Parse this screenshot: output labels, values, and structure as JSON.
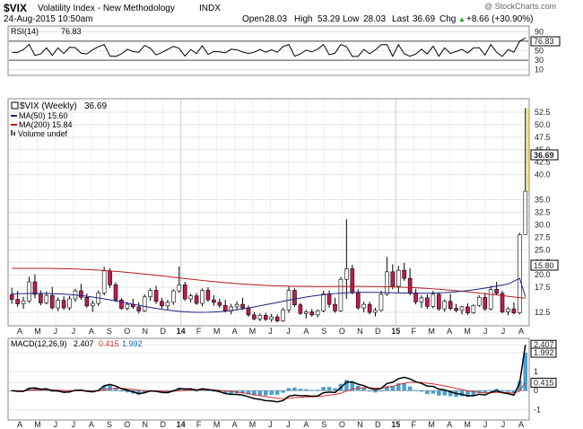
{
  "header": {
    "symbol": "$VIX",
    "name": "Volatility Index - New Methodology",
    "exchange": "INDX",
    "date": "24-Aug-2015 10:50am",
    "copyright": "@ StockCharts.com",
    "open_label": "Open",
    "open": "28.03",
    "high_label": "High",
    "high": "53.29",
    "low_label": "Low",
    "low": "28.03",
    "last_label": "Last",
    "last": "36.69",
    "chg_label": "Chg",
    "chg": "+8.66 (+30.90%)",
    "chg_arrow": "▲"
  },
  "rsi_panel": {
    "label": "RSI(14)",
    "value": "76.83",
    "ticks": [
      "90",
      "70",
      "50",
      "30",
      "10"
    ],
    "overbought": 70,
    "oversold": 30
  },
  "price_panel": {
    "label": "$VIX (Weekly)",
    "value": "36.69",
    "legend": [
      {
        "text": "MA(50) 15.60",
        "color": "#1a237e"
      },
      {
        "text": "MA(200) 15.84",
        "color": "#b71c1c"
      },
      {
        "text": "Volume undef",
        "color": "#555555"
      }
    ],
    "ticks": [
      "52.5",
      "50.0",
      "47.5",
      "45.0",
      "42.5",
      "40.0",
      "36.69",
      "35.0",
      "32.5",
      "30.0",
      "27.5",
      "25.0",
      "22.5",
      "20.0",
      "17.5",
      "15.80",
      "12.5"
    ],
    "last_tag": "36.69",
    "ma_tag": "15.80"
  },
  "macd_panel": {
    "label": "MACD(12,26,9)",
    "v1": "2.407",
    "v2": "0.415",
    "v3": "1.992",
    "ticks": [
      "2.407",
      "1.992",
      "1",
      "0.415",
      "0",
      "-1"
    ]
  },
  "x_axis": {
    "labels": [
      "A",
      "M",
      "J",
      "J",
      "A",
      "S",
      "O",
      "N",
      "D",
      "14",
      "F",
      "M",
      "A",
      "M",
      "J",
      "J",
      "A",
      "S",
      "O",
      "N",
      "D",
      "15",
      "F",
      "M",
      "A",
      "M",
      "J",
      "J",
      "A"
    ]
  },
  "colors": {
    "up_candle": "#ffffff",
    "down_candle": "#c2185b",
    "ma50": "#1a237e",
    "ma200": "#b71c1c",
    "macd_line": "#000000",
    "signal_line": "#d32f2f",
    "histogram": "#4a9fcf",
    "spike": "#ffeb3b",
    "panel_border": "#888888"
  },
  "chart_data": [
    {
      "type": "line",
      "name": "RSI(14)",
      "ylim": [
        0,
        100
      ],
      "ticks": [
        10,
        30,
        50,
        70,
        90
      ],
      "last": 76.83
    },
    {
      "type": "candlestick",
      "title": "$VIX (Weekly)",
      "ylim": [
        10,
        55
      ],
      "ohlc": [
        [
          16.0,
          17.4,
          14.2,
          15.1
        ],
        [
          15.1,
          16.8,
          13.6,
          14.2
        ],
        [
          14.2,
          15.6,
          13.2,
          14.8
        ],
        [
          14.8,
          19.6,
          14.4,
          18.6
        ],
        [
          18.6,
          20.1,
          15.3,
          16.1
        ],
        [
          16.1,
          16.9,
          13.9,
          14.4
        ],
        [
          14.4,
          16.7,
          14.1,
          15.9
        ],
        [
          15.9,
          17.6,
          13.1,
          13.4
        ],
        [
          13.4,
          15.5,
          12.7,
          14.9
        ],
        [
          14.9,
          15.7,
          13.0,
          13.4
        ],
        [
          13.4,
          15.8,
          12.9,
          15.2
        ],
        [
          15.2,
          17.2,
          14.6,
          16.8
        ],
        [
          16.8,
          18.2,
          15.0,
          15.5
        ],
        [
          15.5,
          16.3,
          13.4,
          13.8
        ],
        [
          13.8,
          14.9,
          12.6,
          14.3
        ],
        [
          14.3,
          16.9,
          13.8,
          16.4
        ],
        [
          16.4,
          21.6,
          15.9,
          20.8
        ],
        [
          20.8,
          21.3,
          17.4,
          18.0
        ],
        [
          18.0,
          18.5,
          14.6,
          15.0
        ],
        [
          15.0,
          15.3,
          13.0,
          13.3
        ],
        [
          13.3,
          14.6,
          12.9,
          14.1
        ],
        [
          14.1,
          15.2,
          13.2,
          13.6
        ],
        [
          13.6,
          14.5,
          12.3,
          12.8
        ],
        [
          12.8,
          16.1,
          12.6,
          15.6
        ],
        [
          15.6,
          17.3,
          14.8,
          16.9
        ],
        [
          16.9,
          17.8,
          14.2,
          14.7
        ],
        [
          14.7,
          15.4,
          13.3,
          13.8
        ],
        [
          13.8,
          15.0,
          13.0,
          14.5
        ],
        [
          14.5,
          17.1,
          14.0,
          16.8
        ],
        [
          16.8,
          21.7,
          16.4,
          18.0
        ],
        [
          18.0,
          18.6,
          14.8,
          15.2
        ],
        [
          15.2,
          16.2,
          14.5,
          15.8
        ],
        [
          15.8,
          16.4,
          14.0,
          14.3
        ],
        [
          14.3,
          17.3,
          13.7,
          16.9
        ],
        [
          16.9,
          17.5,
          14.6,
          15.0
        ],
        [
          15.0,
          15.9,
          13.8,
          14.5
        ],
        [
          14.5,
          15.2,
          13.4,
          13.9
        ],
        [
          13.9,
          15.0,
          12.5,
          12.8
        ],
        [
          12.8,
          14.2,
          12.1,
          13.6
        ],
        [
          13.6,
          14.7,
          13.0,
          14.1
        ],
        [
          14.1,
          15.4,
          13.0,
          13.4
        ],
        [
          13.4,
          13.9,
          11.6,
          12.0
        ],
        [
          12.0,
          12.6,
          10.9,
          11.2
        ],
        [
          11.2,
          12.3,
          10.7,
          11.9
        ],
        [
          11.9,
          12.4,
          10.8,
          11.1
        ],
        [
          11.1,
          12.2,
          10.6,
          11.6
        ],
        [
          11.6,
          12.1,
          10.5,
          10.8
        ],
        [
          10.8,
          13.4,
          10.6,
          13.0
        ],
        [
          13.0,
          17.6,
          12.4,
          16.9
        ],
        [
          16.9,
          17.3,
          13.6,
          14.0
        ],
        [
          14.0,
          14.4,
          12.0,
          12.3
        ],
        [
          12.3,
          13.0,
          11.3,
          12.6
        ],
        [
          12.6,
          13.2,
          11.6,
          12.0
        ],
        [
          12.0,
          13.1,
          11.5,
          12.8
        ],
        [
          12.8,
          16.8,
          12.5,
          16.2
        ],
        [
          16.2,
          16.9,
          13.4,
          14.1
        ],
        [
          14.1,
          15.4,
          12.4,
          12.8
        ],
        [
          12.8,
          19.6,
          12.6,
          19.1
        ],
        [
          19.1,
          31.1,
          15.2,
          21.2
        ],
        [
          21.2,
          22.0,
          16.1,
          16.4
        ],
        [
          16.4,
          17.1,
          13.0,
          13.4
        ],
        [
          13.4,
          14.6,
          12.5,
          14.1
        ],
        [
          14.1,
          14.6,
          12.1,
          12.5
        ],
        [
          12.5,
          13.4,
          11.7,
          12.9
        ],
        [
          12.9,
          16.8,
          12.6,
          16.1
        ],
        [
          16.1,
          23.6,
          15.8,
          20.6
        ],
        [
          20.6,
          22.1,
          17.1,
          17.7
        ],
        [
          17.7,
          21.8,
          16.4,
          20.9
        ],
        [
          20.9,
          22.4,
          18.8,
          19.3
        ],
        [
          19.3,
          21.3,
          15.9,
          16.4
        ],
        [
          16.4,
          17.2,
          14.1,
          14.6
        ],
        [
          14.6,
          15.9,
          13.4,
          15.4
        ],
        [
          15.4,
          16.1,
          13.2,
          13.7
        ],
        [
          13.7,
          16.8,
          13.3,
          16.1
        ],
        [
          16.1,
          16.5,
          12.8,
          13.2
        ],
        [
          13.2,
          15.1,
          12.6,
          14.7
        ],
        [
          14.7,
          16.2,
          12.9,
          13.3
        ],
        [
          13.3,
          14.2,
          12.5,
          12.9
        ],
        [
          12.9,
          13.8,
          12.1,
          13.6
        ],
        [
          13.6,
          14.3,
          12.0,
          12.4
        ],
        [
          12.4,
          14.1,
          12.2,
          13.9
        ],
        [
          13.9,
          15.9,
          13.6,
          15.5
        ],
        [
          15.5,
          16.4,
          12.8,
          13.2
        ],
        [
          13.2,
          17.8,
          12.9,
          17.1
        ],
        [
          17.1,
          18.6,
          15.9,
          16.3
        ],
        [
          16.3,
          16.8,
          12.3,
          12.6
        ],
        [
          12.6,
          13.6,
          11.9,
          13.2
        ],
        [
          13.2,
          14.5,
          12.1,
          12.4
        ],
        [
          12.4,
          28.4,
          12.1,
          28.03
        ],
        [
          28.03,
          53.29,
          28.03,
          36.69
        ]
      ],
      "ma50_last": 15.6,
      "ma200_last": 15.84
    },
    {
      "type": "line",
      "name": "MACD(12,26,9)",
      "ylim": [
        -1.5,
        2.7
      ],
      "macd_last": 2.407,
      "signal_last": 0.415,
      "hist_last": 1.992
    }
  ]
}
